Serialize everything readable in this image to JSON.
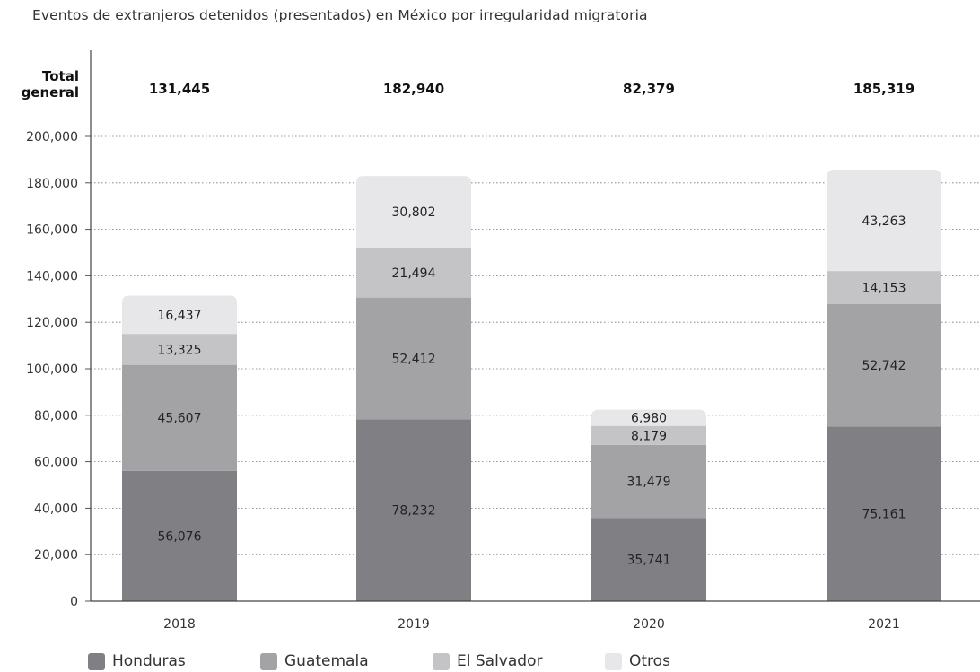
{
  "title": "Eventos de extranjeros detenidos (presentados) en México por irregularidad migratoria",
  "chart_data": {
    "type": "bar",
    "stacked": true,
    "categories": [
      "2018",
      "2019",
      "2020",
      "2021"
    ],
    "series": [
      {
        "name": "Honduras",
        "color": "#808084",
        "values": [
          56076,
          78232,
          35741,
          75161
        ]
      },
      {
        "name": "Guatemala",
        "color": "#a3a3a6",
        "values": [
          45607,
          52412,
          31479,
          52742
        ]
      },
      {
        "name": "El Salvador",
        "color": "#c4c4c7",
        "values": [
          13325,
          21494,
          8179,
          14153
        ]
      },
      {
        "name": "Otros",
        "color": "#e7e7e9",
        "values": [
          16437,
          30802,
          6980,
          43263
        ]
      }
    ],
    "values_labels": {
      "Honduras": [
        "56,076",
        "78,232",
        "35,741",
        "75,161"
      ],
      "Guatemala": [
        "45,607",
        "52,412",
        "31,479",
        "52,742"
      ],
      "El Salvador": [
        "13,325",
        "21,494",
        "8,179",
        "14,153"
      ],
      "Otros": [
        "16,437",
        "30,802",
        "6,980",
        "43,263"
      ]
    },
    "totals_label": "Total general",
    "totals_label_lines": [
      "Total",
      "general"
    ],
    "totals": [
      "131,445",
      "182,940",
      "82,379",
      "185,319"
    ],
    "ylim": [
      0,
      200000
    ],
    "yticks": [
      0,
      20000,
      40000,
      60000,
      80000,
      100000,
      120000,
      140000,
      160000,
      180000,
      200000
    ],
    "ytick_labels": [
      "0",
      "20,000",
      "40,000",
      "60,000",
      "80,000",
      "100,000",
      "120,000",
      "140,000",
      "160,000",
      "180,000",
      "200,000"
    ],
    "grid": true,
    "legend_position": "bottom"
  }
}
